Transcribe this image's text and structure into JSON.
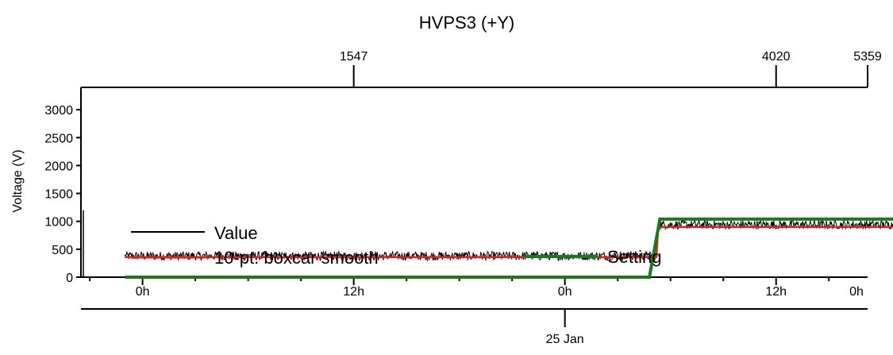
{
  "chart_data": {
    "type": "line",
    "title": "HVPS3 (+Y)",
    "ylabel": "Voltage (V)",
    "ylim": [
      0,
      3400
    ],
    "yticks": [
      0,
      500,
      1000,
      1500,
      2000,
      2500,
      3000
    ],
    "ytick_labels": [
      "0",
      "500",
      "1000",
      "1500",
      "2000",
      "2500",
      "3000"
    ],
    "xlim_hours": [
      -3.5,
      41.2
    ],
    "bottom_ticks": [
      {
        "hour": 0,
        "label": "0h"
      },
      {
        "hour": 12,
        "label": "12h"
      },
      {
        "hour": 24,
        "label": "0h"
      },
      {
        "hour": 36,
        "label": "12h"
      },
      {
        "hour": 48,
        "label": "0h"
      }
    ],
    "date_label": {
      "hour": 24,
      "label": "25 Jan"
    },
    "top_ticks": [
      {
        "hour": 12.0,
        "label": "1547"
      },
      {
        "hour": 36.0,
        "label": "4020"
      },
      {
        "hour": 48.0,
        "label": "5359"
      }
    ],
    "series": [
      {
        "name": "Value",
        "color": "#000000",
        "x": [
          -1.0,
          29.2,
          29.3,
          48.3
        ],
        "y": [
          380,
          380,
          940,
          940
        ],
        "noise_amplitude": 80
      },
      {
        "name": "10-pt. boxcar smooth",
        "color": "#e0201c",
        "x": [
          -1.0,
          29.2,
          29.3,
          48.3
        ],
        "y": [
          360,
          360,
          900,
          900
        ]
      },
      {
        "name": "Setting",
        "color": "#1a7a1a",
        "x": [
          -1.0,
          28.8,
          29.4,
          48.3
        ],
        "y": [
          0,
          0,
          1040,
          1040
        ]
      }
    ]
  }
}
